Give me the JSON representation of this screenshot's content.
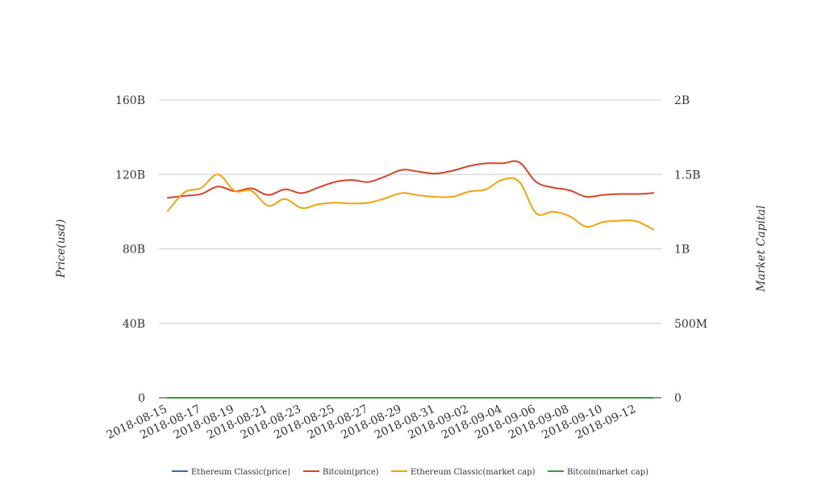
{
  "chart_data": {
    "type": "line",
    "x": [
      "2018-08-15",
      "2018-08-16",
      "2018-08-17",
      "2018-08-18",
      "2018-08-19",
      "2018-08-20",
      "2018-08-21",
      "2018-08-22",
      "2018-08-23",
      "2018-08-24",
      "2018-08-25",
      "2018-08-26",
      "2018-08-27",
      "2018-08-28",
      "2018-08-29",
      "2018-08-30",
      "2018-08-31",
      "2018-09-01",
      "2018-09-02",
      "2018-09-03",
      "2018-09-04",
      "2018-09-05",
      "2018-09-06",
      "2018-09-07",
      "2018-09-08",
      "2018-09-09",
      "2018-09-10",
      "2018-09-11",
      "2018-09-12",
      "2018-09-13"
    ],
    "x_tick_labels": [
      "2018-08-15",
      "2018-08-17",
      "2018-08-19",
      "2018-08-21",
      "2018-08-23",
      "2018-08-25",
      "2018-08-27",
      "2018-08-29",
      "2018-08-31",
      "2018-09-02",
      "2018-09-04",
      "2018-09-06",
      "2018-09-08",
      "2018-09-10",
      "2018-09-12"
    ],
    "y_left": {
      "title": "Price(usd)",
      "range": [
        0,
        160000000000
      ],
      "ticks": [
        0,
        40000000000,
        80000000000,
        120000000000,
        160000000000
      ],
      "tick_labels": [
        "0",
        "40B",
        "80B",
        "120B",
        "160B"
      ]
    },
    "y_right": {
      "title": "Market Capital",
      "range": [
        0,
        2000000000
      ],
      "ticks": [
        0,
        500000000,
        1000000000,
        1500000000,
        2000000000
      ],
      "tick_labels": [
        "0",
        "500M",
        "1B",
        "1.5B",
        "2B"
      ]
    },
    "grid": true,
    "legend_position": "bottom",
    "series": [
      {
        "name": "Ethereum Classic(price)",
        "axis": "left",
        "color": "#2f6fb0",
        "values": [
          0,
          0,
          0,
          0,
          0,
          0,
          0,
          0,
          0,
          0,
          0,
          0,
          0,
          0,
          0,
          0,
          0,
          0,
          0,
          0,
          0,
          0,
          0,
          0,
          0,
          0,
          0,
          0,
          0,
          0
        ]
      },
      {
        "name": "Bitcoin(price)",
        "axis": "left",
        "color": "#d4442a",
        "values": [
          107500000000.0,
          108500000000.0,
          109500000000.0,
          113500000000.0,
          111000000000.0,
          112500000000.0,
          109000000000.0,
          112000000000.0,
          110000000000.0,
          113000000000.0,
          116000000000.0,
          117000000000.0,
          116000000000.0,
          119000000000.0,
          122500000000.0,
          121500000000.0,
          120500000000.0,
          122000000000.0,
          124500000000.0,
          126000000000.0,
          126000000000.0,
          126500000000.0,
          116000000000.0,
          113000000000.0,
          111500000000.0,
          108000000000.0,
          109000000000.0,
          109500000000.0,
          109500000000.0,
          110000000000.0
        ]
      },
      {
        "name": "Ethereum Classic(market cap)",
        "axis": "right",
        "color": "#f0a30a",
        "values": [
          1255000000.0,
          1380000000.0,
          1410000000.0,
          1500000000.0,
          1390000000.0,
          1390000000.0,
          1290000000.0,
          1335000000.0,
          1275000000.0,
          1300000000.0,
          1310000000.0,
          1305000000.0,
          1310000000.0,
          1340000000.0,
          1375000000.0,
          1360000000.0,
          1350000000.0,
          1350000000.0,
          1385000000.0,
          1400000000.0,
          1465000000.0,
          1450000000.0,
          1240000000.0,
          1250000000.0,
          1220000000.0,
          1150000000.0,
          1180000000.0,
          1190000000.0,
          1185000000.0,
          1130000000.0
        ]
      },
      {
        "name": "Bitcoin(market cap)",
        "axis": "right",
        "color": "#2e9e2e",
        "values": [
          0,
          0,
          0,
          0,
          0,
          0,
          0,
          0,
          0,
          0,
          0,
          0,
          0,
          0,
          0,
          0,
          0,
          0,
          0,
          0,
          0,
          0,
          0,
          0,
          0,
          0,
          0,
          0,
          0,
          0
        ]
      }
    ]
  }
}
